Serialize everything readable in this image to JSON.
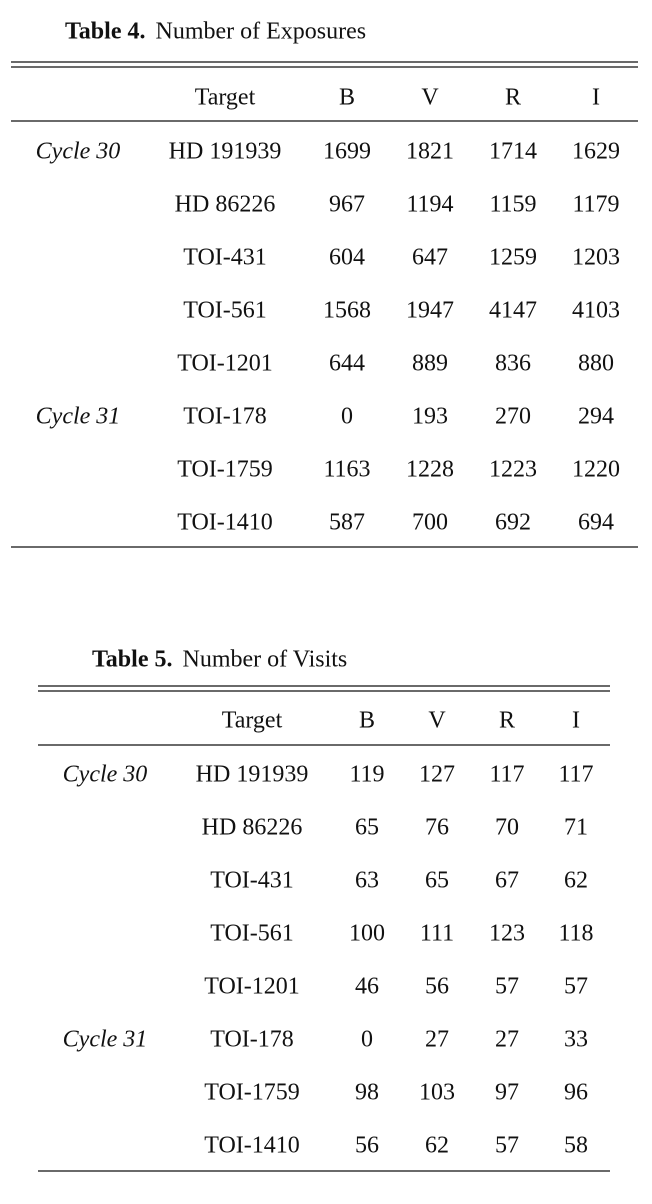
{
  "tables": [
    {
      "label": "Table 4.",
      "title": "Number of Exposures",
      "header": [
        "Target",
        "B",
        "V",
        "R",
        "I"
      ],
      "rows": [
        {
          "cycle": "Cycle 30",
          "cells": [
            "HD 191939",
            1699,
            1821,
            1714,
            1629
          ]
        },
        {
          "cells": [
            "HD 86226",
            967,
            1194,
            1159,
            1179
          ]
        },
        {
          "cells": [
            "TOI-431",
            604,
            647,
            1259,
            1203
          ]
        },
        {
          "cells": [
            "TOI-561",
            1568,
            1947,
            4147,
            4103
          ]
        },
        {
          "cells": [
            "TOI-1201",
            644,
            889,
            836,
            880
          ]
        },
        {
          "cycle": "Cycle 31",
          "cells": [
            "TOI-178",
            0,
            193,
            270,
            294
          ]
        },
        {
          "cells": [
            "TOI-1759",
            1163,
            1228,
            1223,
            1220
          ]
        },
        {
          "cells": [
            "TOI-1410",
            587,
            700,
            692,
            694
          ]
        }
      ]
    },
    {
      "label": "Table 5.",
      "title": "Number of Visits",
      "header": [
        "Target",
        "B",
        "V",
        "R",
        "I"
      ],
      "rows": [
        {
          "cycle": "Cycle 30",
          "cells": [
            "HD 191939",
            119,
            127,
            117,
            117
          ]
        },
        {
          "cells": [
            "HD 86226",
            65,
            76,
            70,
            71
          ]
        },
        {
          "cells": [
            "TOI-431",
            63,
            65,
            67,
            62
          ]
        },
        {
          "cells": [
            "TOI-561",
            100,
            111,
            123,
            118
          ]
        },
        {
          "cells": [
            "TOI-1201",
            46,
            56,
            57,
            57
          ]
        },
        {
          "cycle": "Cycle 31",
          "cells": [
            "TOI-178",
            0,
            27,
            27,
            33
          ]
        },
        {
          "cells": [
            "TOI-1759",
            98,
            103,
            97,
            96
          ]
        },
        {
          "cells": [
            "TOI-1410",
            56,
            62,
            57,
            58
          ]
        }
      ]
    }
  ]
}
